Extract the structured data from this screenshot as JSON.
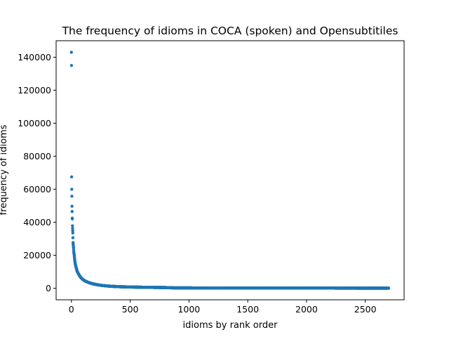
{
  "chart_data": {
    "type": "scatter",
    "title": "The frequency of idioms in COCA (spoken) and Opensubtitiles",
    "xlabel": "idioms by rank order",
    "ylabel": "frequency of idioms",
    "xlim": [
      -130,
      2830
    ],
    "ylim": [
      -7000,
      150000
    ],
    "xticks": [
      0,
      500,
      1000,
      1500,
      2000,
      2500
    ],
    "yticks": [
      0,
      20000,
      40000,
      60000,
      80000,
      100000,
      120000,
      140000
    ],
    "grid": false,
    "legend": "none",
    "color": "#1f77b4",
    "n_points": 2700,
    "x": [
      1,
      2,
      3,
      4,
      5,
      6,
      7,
      8,
      9,
      10,
      11,
      12,
      13,
      14,
      15,
      17,
      19,
      21,
      23,
      25,
      28,
      32,
      36,
      40,
      45,
      50,
      60,
      70,
      80,
      100,
      120,
      150,
      200,
      250,
      300,
      350,
      400,
      500,
      600,
      700,
      800,
      890,
      1000,
      1200,
      1500,
      1800,
      2000,
      2200,
      2400,
      2600,
      2700
    ],
    "y": [
      143000,
      135000,
      67500,
      60000,
      55800,
      49700,
      46500,
      42500,
      42000,
      37800,
      36200,
      34800,
      33500,
      30600,
      27700,
      26200,
      24600,
      22300,
      21200,
      20100,
      17800,
      15600,
      14100,
      12800,
      11500,
      10300,
      8900,
      7600,
      6600,
      5200,
      4300,
      3400,
      2400,
      1800,
      1400,
      1150,
      950,
      750,
      600,
      500,
      420,
      200,
      180,
      150,
      120,
      100,
      90,
      80,
      70,
      65,
      60
    ]
  }
}
